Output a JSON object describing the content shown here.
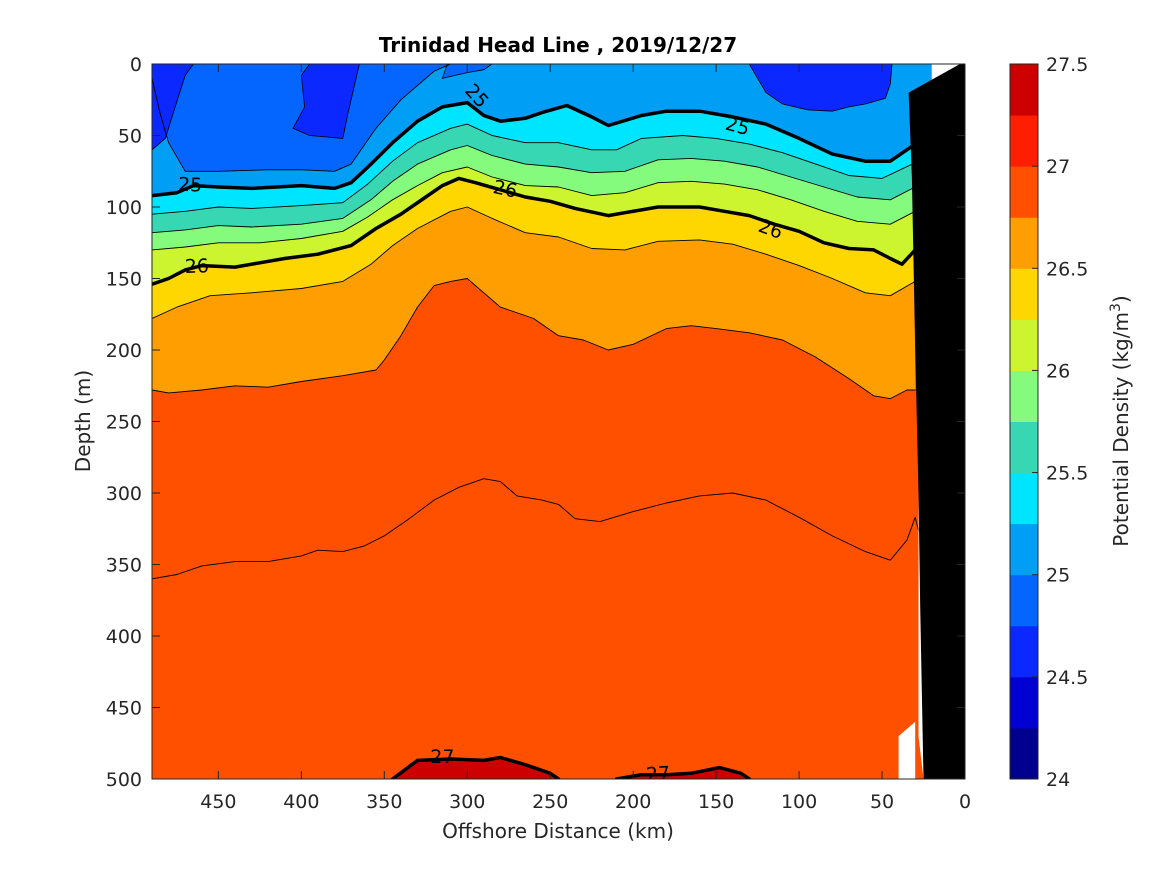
{
  "chart_data": {
    "type": "heatmap",
    "subtype": "filled-contour-section",
    "title": "Trinidad Head Line , 2019/12/27",
    "xlabel": "Offshore Distance (km)",
    "ylabel": "Depth (m)",
    "x_reversed": true,
    "y_reversed": true,
    "xlim": [
      0,
      490
    ],
    "ylim": [
      0,
      500
    ],
    "x_ticks": [
      450,
      400,
      350,
      300,
      250,
      200,
      150,
      100,
      50,
      0
    ],
    "y_ticks": [
      0,
      50,
      100,
      150,
      200,
      250,
      300,
      350,
      400,
      450,
      500
    ],
    "colorbar": {
      "label_main": "Potential Density (kg/m",
      "label_sup": "3",
      "label_close": ")",
      "range": [
        24,
        27.5
      ],
      "step": 0.25,
      "ticks": [
        "27.5",
        "27",
        "26.5",
        "26",
        "25.5",
        "25",
        "24.5",
        "24"
      ],
      "colors": [
        "#00008f",
        "#0000d2",
        "#0a28ff",
        "#0566ff",
        "#009ff5",
        "#00e5ff",
        "#37d7b4",
        "#85fb7d",
        "#cdf52f",
        "#ffd700",
        "#ff9e00",
        "#ff5000",
        "#ff1e00",
        "#cc0000"
      ]
    },
    "contour_lines": [
      {
        "level": 24.75,
        "points": [
          [
            490,
            10
          ],
          [
            485,
            35
          ],
          [
            480,
            55
          ],
          [
            470,
            75
          ],
          [
            450,
            75
          ],
          [
            420,
            74
          ],
          [
            400,
            74
          ],
          [
            380,
            75
          ],
          [
            370,
            70
          ],
          [
            355,
            45
          ],
          [
            340,
            25
          ],
          [
            330,
            15
          ],
          [
            320,
            5
          ],
          [
            310,
            0
          ]
        ]
      },
      {
        "level": 25.0,
        "points": [
          [
            490,
            92
          ],
          [
            475,
            90
          ],
          [
            465,
            85
          ],
          [
            450,
            86
          ],
          [
            430,
            87
          ],
          [
            400,
            85
          ],
          [
            380,
            87
          ],
          [
            370,
            83
          ],
          [
            358,
            70
          ],
          [
            345,
            55
          ],
          [
            330,
            40
          ],
          [
            315,
            30
          ],
          [
            300,
            27
          ],
          [
            290,
            36
          ],
          [
            280,
            40
          ],
          [
            265,
            38
          ],
          [
            255,
            34
          ],
          [
            240,
            29
          ],
          [
            225,
            37
          ],
          [
            215,
            43
          ],
          [
            195,
            36
          ],
          [
            180,
            33
          ],
          [
            160,
            33
          ],
          [
            140,
            37
          ],
          [
            120,
            42
          ],
          [
            100,
            52
          ],
          [
            80,
            63
          ],
          [
            60,
            68
          ],
          [
            45,
            68
          ],
          [
            30,
            56
          ],
          [
            20,
            40
          ]
        ]
      },
      {
        "level": 25.25,
        "points": [
          [
            490,
            105
          ],
          [
            470,
            103
          ],
          [
            450,
            100
          ],
          [
            430,
            101
          ],
          [
            400,
            99
          ],
          [
            375,
            97
          ],
          [
            360,
            84
          ],
          [
            345,
            68
          ],
          [
            330,
            55
          ],
          [
            310,
            45
          ],
          [
            300,
            42
          ],
          [
            285,
            50
          ],
          [
            265,
            55
          ],
          [
            245,
            55
          ],
          [
            225,
            60
          ],
          [
            210,
            60
          ],
          [
            195,
            52
          ],
          [
            170,
            50
          ],
          [
            150,
            52
          ],
          [
            130,
            56
          ],
          [
            110,
            62
          ],
          [
            90,
            70
          ],
          [
            70,
            78
          ],
          [
            50,
            80
          ],
          [
            30,
            69
          ],
          [
            20,
            58
          ]
        ]
      },
      {
        "level": 25.5,
        "points": [
          [
            490,
            118
          ],
          [
            470,
            116
          ],
          [
            450,
            113
          ],
          [
            430,
            114
          ],
          [
            400,
            112
          ],
          [
            375,
            108
          ],
          [
            358,
            95
          ],
          [
            345,
            82
          ],
          [
            330,
            70
          ],
          [
            310,
            60
          ],
          [
            300,
            57
          ],
          [
            285,
            64
          ],
          [
            265,
            70
          ],
          [
            245,
            72
          ],
          [
            225,
            76
          ],
          [
            205,
            75
          ],
          [
            185,
            67
          ],
          [
            165,
            66
          ],
          [
            145,
            68
          ],
          [
            125,
            72
          ],
          [
            105,
            79
          ],
          [
            85,
            86
          ],
          [
            65,
            93
          ],
          [
            45,
            95
          ],
          [
            30,
            86
          ],
          [
            20,
            73
          ]
        ]
      },
      {
        "level": 25.75,
        "points": [
          [
            490,
            130
          ],
          [
            470,
            128
          ],
          [
            450,
            125
          ],
          [
            425,
            125
          ],
          [
            400,
            122
          ],
          [
            375,
            117
          ],
          [
            360,
            107
          ],
          [
            345,
            95
          ],
          [
            330,
            85
          ],
          [
            315,
            76
          ],
          [
            300,
            72
          ],
          [
            285,
            79
          ],
          [
            265,
            85
          ],
          [
            245,
            86
          ],
          [
            225,
            92
          ],
          [
            205,
            90
          ],
          [
            185,
            83
          ],
          [
            165,
            82
          ],
          [
            145,
            84
          ],
          [
            125,
            88
          ],
          [
            105,
            95
          ],
          [
            85,
            103
          ],
          [
            65,
            110
          ],
          [
            45,
            112
          ],
          [
            30,
            103
          ],
          [
            20,
            92
          ]
        ]
      },
      {
        "level": 26.0,
        "points": [
          [
            490,
            154
          ],
          [
            480,
            150
          ],
          [
            470,
            144
          ],
          [
            460,
            141
          ],
          [
            440,
            142
          ],
          [
            425,
            139
          ],
          [
            410,
            136
          ],
          [
            390,
            133
          ],
          [
            370,
            127
          ],
          [
            355,
            115
          ],
          [
            340,
            105
          ],
          [
            325,
            93
          ],
          [
            315,
            85
          ],
          [
            305,
            80
          ],
          [
            295,
            83
          ],
          [
            280,
            88
          ],
          [
            265,
            93
          ],
          [
            250,
            96
          ],
          [
            235,
            101
          ],
          [
            215,
            106
          ],
          [
            205,
            104
          ],
          [
            185,
            100
          ],
          [
            160,
            100
          ],
          [
            145,
            103
          ],
          [
            130,
            106
          ],
          [
            115,
            112
          ],
          [
            100,
            117
          ],
          [
            85,
            125
          ],
          [
            70,
            129
          ],
          [
            55,
            130
          ],
          [
            45,
            136
          ],
          [
            38,
            140
          ],
          [
            30,
            130
          ],
          [
            20,
            116
          ]
        ]
      },
      {
        "level": 26.25,
        "points": [
          [
            490,
            178
          ],
          [
            475,
            170
          ],
          [
            455,
            162
          ],
          [
            430,
            160
          ],
          [
            400,
            157
          ],
          [
            375,
            152
          ],
          [
            358,
            140
          ],
          [
            345,
            127
          ],
          [
            330,
            115
          ],
          [
            310,
            103
          ],
          [
            300,
            100
          ],
          [
            285,
            108
          ],
          [
            265,
            118
          ],
          [
            245,
            121
          ],
          [
            225,
            129
          ],
          [
            205,
            130
          ],
          [
            185,
            124
          ],
          [
            160,
            123
          ],
          [
            140,
            126
          ],
          [
            120,
            133
          ],
          [
            100,
            141
          ],
          [
            80,
            150
          ],
          [
            60,
            160
          ],
          [
            45,
            162
          ],
          [
            30,
            152
          ],
          [
            20,
            141
          ]
        ]
      },
      {
        "level": 26.5,
        "points": [
          [
            490,
            228
          ],
          [
            480,
            230
          ],
          [
            460,
            228
          ],
          [
            440,
            225
          ],
          [
            420,
            226
          ],
          [
            400,
            222
          ],
          [
            375,
            218
          ],
          [
            355,
            214
          ],
          [
            350,
            207
          ],
          [
            340,
            190
          ],
          [
            330,
            170
          ],
          [
            320,
            155
          ],
          [
            310,
            152
          ],
          [
            300,
            150
          ],
          [
            290,
            160
          ],
          [
            280,
            170
          ],
          [
            260,
            178
          ],
          [
            245,
            190
          ],
          [
            230,
            193
          ],
          [
            215,
            200
          ],
          [
            200,
            196
          ],
          [
            180,
            185
          ],
          [
            165,
            183
          ],
          [
            150,
            185
          ],
          [
            130,
            188
          ],
          [
            110,
            193
          ],
          [
            90,
            205
          ],
          [
            70,
            220
          ],
          [
            55,
            232
          ],
          [
            45,
            234
          ],
          [
            35,
            228
          ],
          [
            30,
            228
          ]
        ]
      },
      {
        "level": 26.75,
        "points": [
          [
            490,
            360
          ],
          [
            475,
            357
          ],
          [
            460,
            351
          ],
          [
            440,
            348
          ],
          [
            420,
            348
          ],
          [
            400,
            344
          ],
          [
            390,
            340
          ],
          [
            375,
            341
          ],
          [
            362,
            337
          ],
          [
            350,
            330
          ],
          [
            335,
            318
          ],
          [
            320,
            305
          ],
          [
            305,
            296
          ],
          [
            290,
            290
          ],
          [
            280,
            292
          ],
          [
            270,
            302
          ],
          [
            255,
            305
          ],
          [
            245,
            308
          ],
          [
            235,
            318
          ],
          [
            220,
            320
          ],
          [
            200,
            313
          ],
          [
            180,
            307
          ],
          [
            160,
            302
          ],
          [
            140,
            300
          ],
          [
            120,
            305
          ],
          [
            100,
            317
          ],
          [
            80,
            330
          ],
          [
            60,
            341
          ],
          [
            45,
            347
          ],
          [
            35,
            333
          ],
          [
            30,
            317
          ],
          [
            25,
            340
          ],
          [
            22,
            360
          ]
        ]
      },
      {
        "level": 27.0,
        "bold": true,
        "points": [
          [
            345,
            500
          ],
          [
            330,
            487
          ],
          [
            310,
            486
          ],
          [
            290,
            487
          ],
          [
            280,
            485
          ],
          [
            265,
            490
          ],
          [
            250,
            496
          ],
          [
            245,
            500
          ]
        ]
      },
      {
        "level": 27.0,
        "bold": true,
        "points": [
          [
            210,
            500
          ],
          [
            195,
            497
          ],
          [
            180,
            497
          ],
          [
            165,
            496
          ],
          [
            148,
            492
          ],
          [
            135,
            496
          ],
          [
            130,
            500
          ]
        ]
      }
    ],
    "contour_labels": [
      {
        "text": "25",
        "x": 294,
        "y": 22,
        "angle": 48
      },
      {
        "text": "25",
        "x": 137,
        "y": 43,
        "angle": 15
      },
      {
        "text": "25",
        "x": 467,
        "y": 84,
        "angle": 3
      },
      {
        "text": "26",
        "x": 277,
        "y": 87,
        "angle": 12
      },
      {
        "text": "26",
        "x": 117,
        "y": 115,
        "angle": 20
      },
      {
        "text": "26",
        "x": 463,
        "y": 141,
        "angle": -2
      },
      {
        "text": "27",
        "x": 315,
        "y": 484,
        "angle": 0
      },
      {
        "text": "27",
        "x": 185,
        "y": 496,
        "angle": -4
      }
    ],
    "bottom_topography_km_depth": [
      [
        20,
        0
      ],
      [
        0,
        0
      ],
      [
        0,
        500
      ],
      [
        25,
        500
      ],
      [
        27,
        380
      ],
      [
        28,
        300
      ],
      [
        30,
        200
      ],
      [
        32,
        80
      ],
      [
        34,
        20
      ],
      [
        30,
        0
      ]
    ]
  }
}
